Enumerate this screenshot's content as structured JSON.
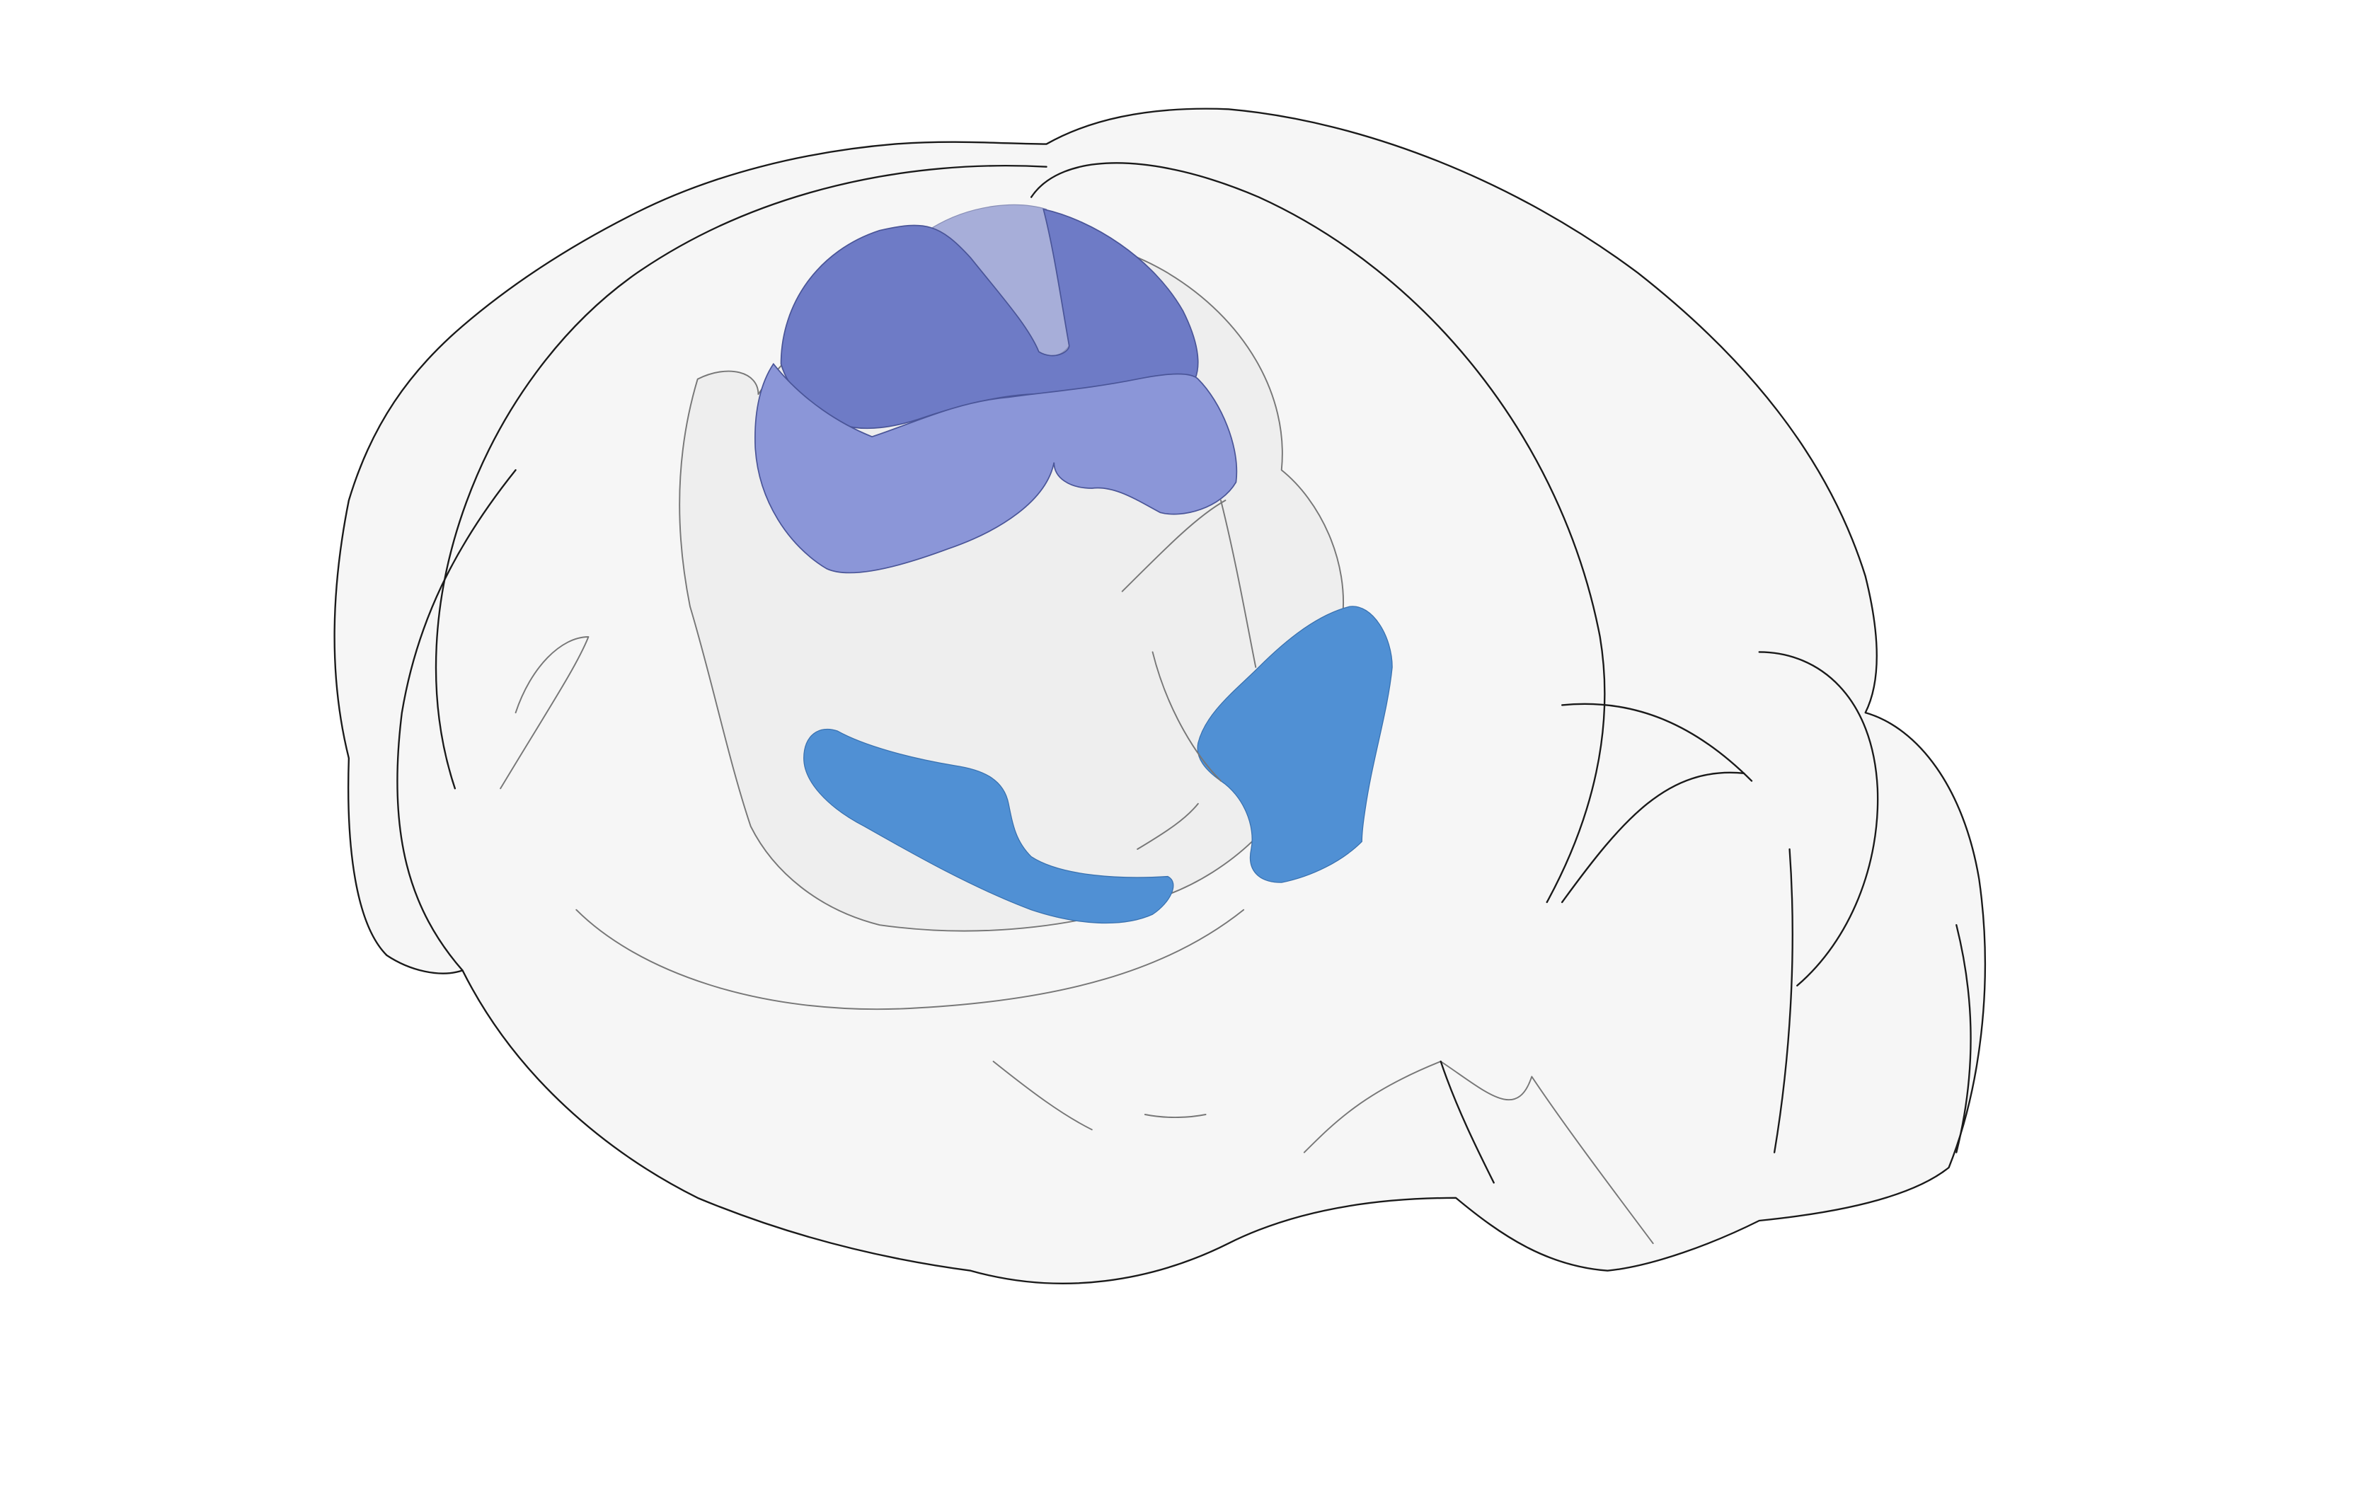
{
  "figure": {
    "kind": "3d-brain-render",
    "background_color": "#ffffff"
  },
  "brain": {
    "fill_color": "#f6f6f6",
    "outline_color": "#1a1a1a",
    "inner_region_fill": "#ececec",
    "inner_outline_color": "#777777"
  },
  "regions": [
    {
      "id": "upper-dark",
      "color": "#6e7bc6"
    },
    {
      "id": "upper-light",
      "color": "#8b96d8"
    },
    {
      "id": "upper-translucent",
      "color": "#a7aed9"
    },
    {
      "id": "lower-left",
      "color": "#5090d4"
    },
    {
      "id": "lower-right",
      "color": "#5090d4"
    }
  ]
}
